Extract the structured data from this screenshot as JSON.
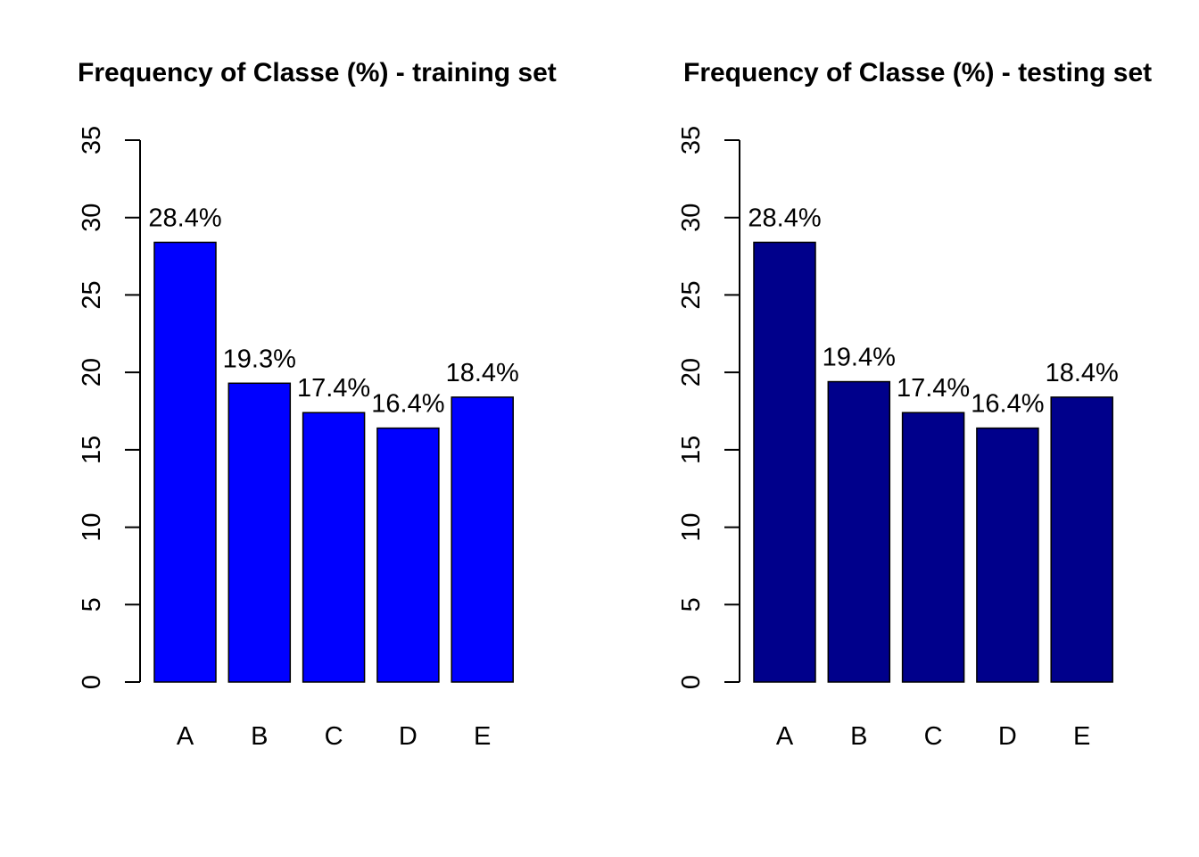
{
  "chart_data": [
    {
      "type": "bar",
      "title": "Frequency of Classe (%) - training set",
      "xlabel": "",
      "ylabel": "",
      "categories": [
        "A",
        "B",
        "C",
        "D",
        "E"
      ],
      "values": [
        28.4,
        19.3,
        17.4,
        16.4,
        18.4
      ],
      "data_labels": [
        "28.4%",
        "19.3%",
        "17.4%",
        "16.4%",
        "18.4%"
      ],
      "ylim": [
        0,
        35
      ],
      "yticks": [
        0,
        5,
        10,
        15,
        20,
        25,
        30,
        35
      ],
      "ytick_labels": [
        "0",
        "5",
        "10",
        "15",
        "20",
        "25",
        "30",
        "35"
      ],
      "bar_color": "#0000FF",
      "grid": false,
      "legend": "none"
    },
    {
      "type": "bar",
      "title": "Frequency of Classe (%) - testing set",
      "xlabel": "",
      "ylabel": "",
      "categories": [
        "A",
        "B",
        "C",
        "D",
        "E"
      ],
      "values": [
        28.4,
        19.4,
        17.4,
        16.4,
        18.4
      ],
      "data_labels": [
        "28.4%",
        "19.4%",
        "17.4%",
        "16.4%",
        "18.4%"
      ],
      "ylim": [
        0,
        35
      ],
      "yticks": [
        0,
        5,
        10,
        15,
        20,
        25,
        30,
        35
      ],
      "ytick_labels": [
        "0",
        "5",
        "10",
        "15",
        "20",
        "25",
        "30",
        "35"
      ],
      "bar_color": "#00008B",
      "grid": false,
      "legend": "none"
    }
  ]
}
